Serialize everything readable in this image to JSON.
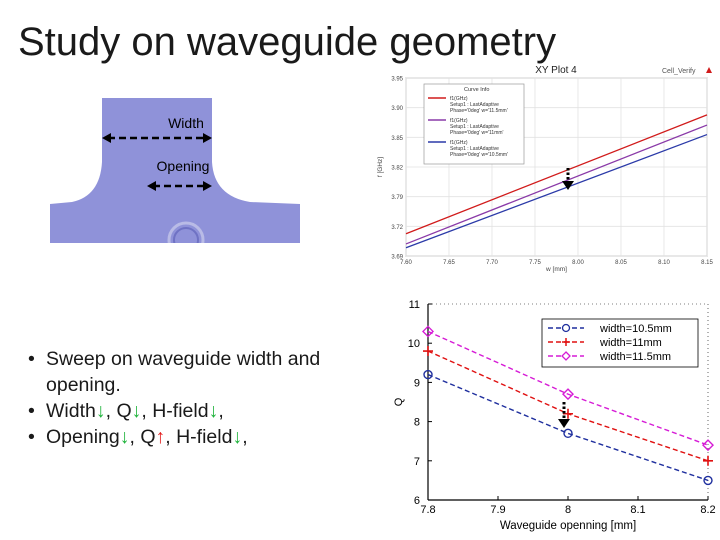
{
  "slide": {
    "title": "Study on waveguide geometry",
    "bullets": [
      {
        "parts": [
          {
            "t": "Sweep on waveguide width and opening.",
            "c": ""
          }
        ]
      },
      {
        "parts": [
          {
            "t": "Width",
            "c": ""
          },
          {
            "t": "↓",
            "c": "dn"
          },
          {
            "t": ", Q",
            "c": ""
          },
          {
            "t": "↓",
            "c": "dn"
          },
          {
            "t": ", H-field",
            "c": ""
          },
          {
            "t": "↓",
            "c": "dn"
          },
          {
            "t": ",",
            "c": ""
          }
        ]
      },
      {
        "parts": [
          {
            "t": "Opening",
            "c": ""
          },
          {
            "t": "↓",
            "c": "dn"
          },
          {
            "t": ", Q",
            "c": ""
          },
          {
            "t": "↑",
            "c": "up"
          },
          {
            "t": ", H-field",
            "c": ""
          },
          {
            "t": "↓",
            "c": "dn"
          },
          {
            "t": ",",
            "c": ""
          }
        ]
      }
    ]
  },
  "geometry": {
    "width_label": "Width",
    "opening_label": "Opening",
    "fill_color": "#8f92d9"
  },
  "xyplot": {
    "title": "XY Plot 4",
    "corner_label": "Cell_Verify",
    "ylabel": "f [GHz]",
    "xlabel": "w [mm]",
    "yticks": [
      "3.95",
      "3.90",
      "3.85",
      "3.82",
      "3.79",
      "3.72",
      "3.69"
    ],
    "xticks": [
      "7.60",
      "7.65",
      "7.70",
      "7.75",
      "8.00",
      "8.05",
      "8.10",
      "8.15"
    ],
    "legend_header": "Curve Info",
    "legend": [
      {
        "name": "f1(GHz)",
        "line2": "Setup1 : LastAdaptive",
        "line3": "Phase='0deg' w='11.5mm'",
        "color": "#d11b1b"
      },
      {
        "name": "f1(GHz)",
        "line2": "Setup1 : LastAdaptive",
        "line3": "Phase='0deg' w='11mm'",
        "color": "#8a3aa8"
      },
      {
        "name": "f1(GHz)",
        "line2": "Setup1 : LastAdaptive",
        "line3": "Phase='0deg' w='10.5mm'",
        "color": "#2b3aa8"
      }
    ],
    "lines": [
      {
        "y0": 3.705,
        "y1": 3.892,
        "color": "#d11b1b"
      },
      {
        "y0": 3.689,
        "y1": 3.876,
        "color": "#8a3aa8"
      },
      {
        "y0": 3.683,
        "y1": 3.861,
        "color": "#2b3aa8"
      }
    ]
  },
  "chart_data": {
    "type": "line",
    "xlabel": "Waveguide openning [mm]",
    "ylabel": "Q",
    "x": [
      7.8,
      8.0,
      8.2
    ],
    "xticks": [
      "7.8",
      "7.9",
      "8",
      "8.1",
      "8.2"
    ],
    "yticks": [
      "6",
      "7",
      "8",
      "9",
      "10",
      "11"
    ],
    "xlim": [
      7.8,
      8.2
    ],
    "ylim": [
      6,
      11
    ],
    "legend_position": "top-right",
    "series": [
      {
        "name": "width=10.5mm",
        "values": [
          9.2,
          7.7,
          6.5
        ],
        "color": "#1f2f9e",
        "marker": "circle"
      },
      {
        "name": "width=11mm",
        "values": [
          9.8,
          8.2,
          7.0
        ],
        "color": "#e01010",
        "marker": "plus"
      },
      {
        "name": "width=11.5mm",
        "values": [
          10.3,
          8.7,
          7.4
        ],
        "color": "#d61bd6",
        "marker": "diamond"
      }
    ]
  }
}
